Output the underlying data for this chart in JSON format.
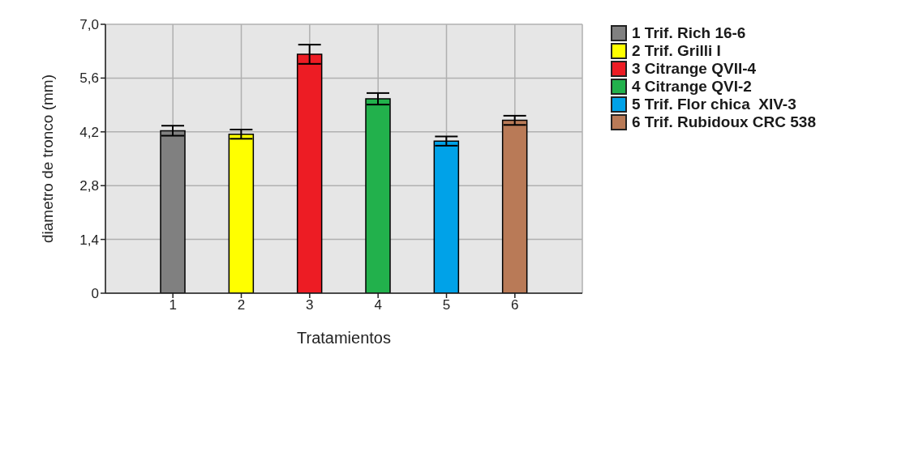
{
  "chart_data": {
    "type": "bar",
    "xlabel": "Tratamientos",
    "ylabel": "diametro de tronco (mm)",
    "categories": [
      "1",
      "2",
      "3",
      "4",
      "5",
      "6"
    ],
    "stacked": true,
    "series": [
      {
        "name": "1 Trif. Rich 16-6",
        "color": "#808080",
        "values": [
          4.23,
          null,
          null,
          null,
          null,
          null
        ],
        "errors": [
          0.13,
          null,
          null,
          null,
          null,
          null
        ]
      },
      {
        "name": "2 Trif. Grilli I",
        "color": "#ffff00",
        "values": [
          null,
          4.14,
          null,
          null,
          null,
          null
        ],
        "errors": [
          null,
          0.12,
          null,
          null,
          null,
          null
        ]
      },
      {
        "name": "3 Citrange QVII-4",
        "color": "#ed1c24",
        "values": [
          null,
          null,
          6.22,
          null,
          null,
          null
        ],
        "errors": [
          null,
          null,
          0.25,
          null,
          null,
          null
        ]
      },
      {
        "name": "4 Citrange QVI-2",
        "color": "#22b14c",
        "values": [
          null,
          null,
          null,
          5.06,
          null,
          null
        ],
        "errors": [
          null,
          null,
          null,
          0.15,
          null,
          null
        ]
      },
      {
        "name": "5 Trif. Flor chica  XIV-3",
        "color": "#00a2e8",
        "values": [
          null,
          null,
          null,
          null,
          3.96,
          null
        ],
        "errors": [
          null,
          null,
          null,
          null,
          0.12,
          null
        ]
      },
      {
        "name": "6 Trif. Rubidoux CRC 538",
        "color": "#b97a57",
        "values": [
          null,
          null,
          null,
          null,
          null,
          4.5
        ],
        "errors": [
          null,
          null,
          null,
          null,
          null,
          0.12
        ]
      }
    ],
    "ylim": [
      0,
      7
    ],
    "yticks": [
      0,
      {
        "value": 1.4,
        "label": "1,4"
      },
      {
        "value": 2.8,
        "label": "2,8"
      },
      {
        "value": 4.2,
        "label": "4,2"
      },
      {
        "value": 5.6,
        "label": "5,6"
      },
      {
        "value": 7,
        "label": "7,0"
      }
    ],
    "grid": true,
    "legend": "top right"
  }
}
